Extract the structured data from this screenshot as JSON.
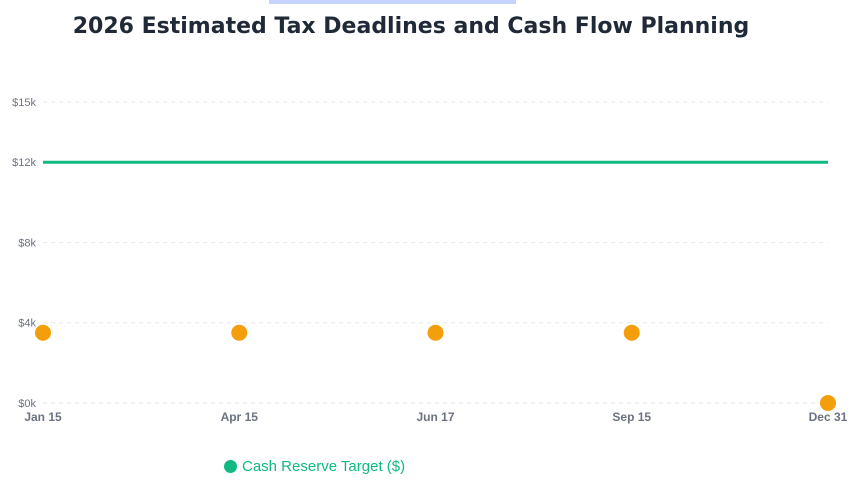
{
  "title": "2026 Estimated Tax Deadlines and Cash Flow Planning",
  "colors": {
    "reserve": "#10b981",
    "payment": "#f59e0b",
    "grid": "#e5e7eb",
    "tick": "#6b7280",
    "title": "#1f2937"
  },
  "chart_data": {
    "type": "line",
    "x": [
      "Jan 15",
      "Apr 15",
      "Jun 17",
      "Sep 15",
      "Dec 31"
    ],
    "y_ticks": [
      "$0k",
      "$4k",
      "$8k",
      "$12k",
      "$15k"
    ],
    "ylim": [
      0,
      15000
    ],
    "grid": true,
    "legend": {
      "position": "bottom",
      "entries": [
        "Cash Reserve Target ($)"
      ]
    },
    "series": [
      {
        "name": "Cash Reserve Target ($)",
        "kind": "line",
        "values": [
          12000,
          12000,
          12000,
          12000,
          12000
        ]
      },
      {
        "kind": "points",
        "values": [
          3500,
          3500,
          3500,
          3500,
          0
        ]
      }
    ]
  }
}
